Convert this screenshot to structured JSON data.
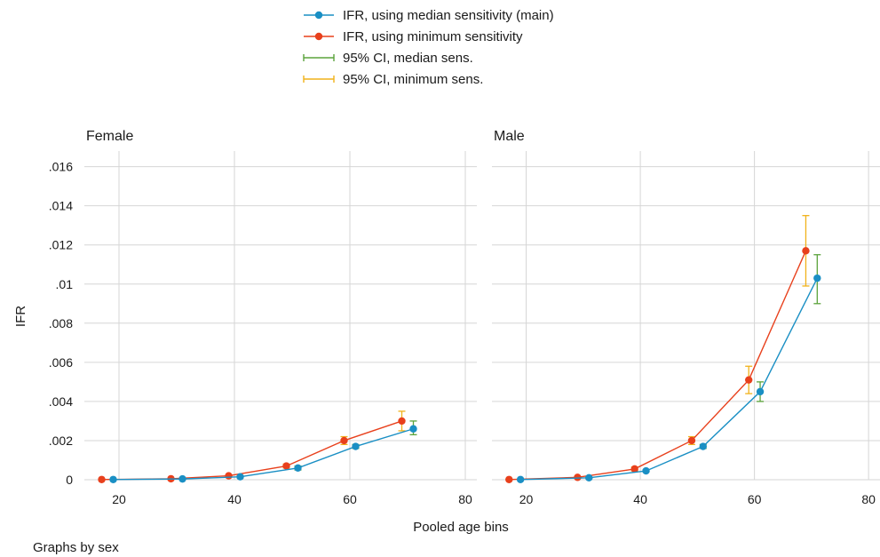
{
  "chart_data": {
    "type": "line",
    "xlabel": "Pooled age bins",
    "ylabel": "IFR",
    "note": "Graphs by sex",
    "xlim": [
      14,
      82
    ],
    "ylim": [
      0,
      0.0168
    ],
    "xticks": [
      {
        "value": 20,
        "label": "20"
      },
      {
        "value": 40,
        "label": "40"
      },
      {
        "value": 60,
        "label": "60"
      },
      {
        "value": 80,
        "label": "80"
      }
    ],
    "yticks": [
      {
        "value": 0,
        "label": "0"
      },
      {
        "value": 0.002,
        "label": ".002"
      },
      {
        "value": 0.004,
        "label": ".004"
      },
      {
        "value": 0.006,
        "label": ".006"
      },
      {
        "value": 0.008,
        "label": ".008"
      },
      {
        "value": 0.01,
        "label": ".01"
      },
      {
        "value": 0.012,
        "label": ".012"
      },
      {
        "value": 0.014,
        "label": ".014"
      },
      {
        "value": 0.016,
        "label": ".016"
      }
    ],
    "grid": true,
    "legend_position": "top-center",
    "legend": [
      {
        "label": "IFR, using median sensitivity (main)",
        "kind": "line",
        "color": "#1a8fc4"
      },
      {
        "label": "IFR, using minimum sensitivity",
        "kind": "line",
        "color": "#e8401c"
      },
      {
        "label": "95% CI, median sens.",
        "kind": "ci",
        "color": "#5ba33b"
      },
      {
        "label": "95% CI, minimum sens.",
        "kind": "ci",
        "color": "#f1b21a"
      }
    ],
    "panels": [
      {
        "title": "Female",
        "series": [
          {
            "color": "#e8401c",
            "x": [
              17,
              29,
              39,
              49,
              59,
              69
            ],
            "y": [
              1e-05,
              5e-05,
              0.0002,
              0.0007,
              0.002,
              0.003
            ],
            "ci_color": "#f1b21a",
            "ci_low": [
              5e-06,
              3e-05,
              0.00015,
              0.0006,
              0.0018,
              0.0025
            ],
            "ci_high": [
              2e-05,
              7e-05,
              0.00025,
              0.0008,
              0.0022,
              0.0035
            ]
          },
          {
            "color": "#1a8fc4",
            "x": [
              19,
              31,
              41,
              51,
              61,
              71
            ],
            "y": [
              1e-05,
              4e-05,
              0.00015,
              0.0006,
              0.0017,
              0.0026
            ],
            "ci_color": "#5ba33b",
            "ci_low": [
              5e-06,
              2e-05,
              0.0001,
              0.0005,
              0.0016,
              0.0023
            ],
            "ci_high": [
              2e-05,
              6e-05,
              0.0002,
              0.0007,
              0.0018,
              0.003
            ]
          }
        ]
      },
      {
        "title": "Male",
        "series": [
          {
            "color": "#e8401c",
            "x": [
              17,
              29,
              39,
              49,
              59,
              69
            ],
            "y": [
              1e-05,
              0.00012,
              0.00055,
              0.002,
              0.0051,
              0.0117
            ],
            "ci_color": "#f1b21a",
            "ci_low": [
              5e-06,
              9e-05,
              0.00045,
              0.0018,
              0.0044,
              0.0099
            ],
            "ci_high": [
              2e-05,
              0.00016,
              0.00065,
              0.0022,
              0.0058,
              0.0135
            ]
          },
          {
            "color": "#1a8fc4",
            "x": [
              19,
              31,
              41,
              51,
              61,
              71
            ],
            "y": [
              1e-05,
              0.0001,
              0.00045,
              0.0017,
              0.0045,
              0.0103
            ],
            "ci_color": "#5ba33b",
            "ci_low": [
              5e-06,
              7e-05,
              0.0004,
              0.0016,
              0.004,
              0.009
            ],
            "ci_high": [
              2e-05,
              0.00013,
              0.0005,
              0.0018,
              0.005,
              0.0115
            ]
          }
        ]
      }
    ]
  }
}
